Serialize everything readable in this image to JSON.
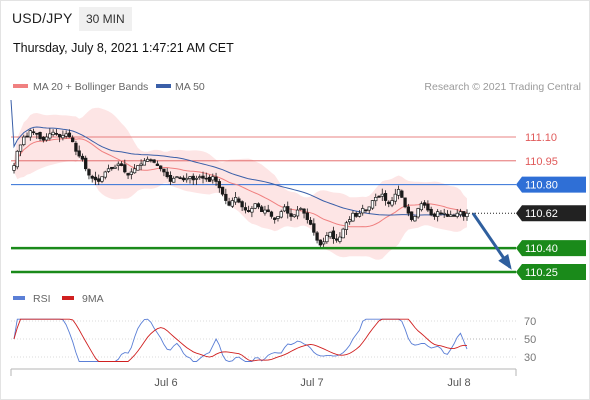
{
  "header": {
    "symbol": "USD/JPY",
    "timeframe": "30 MIN",
    "timestamp": "Thursday, July 8, 2021 1:47:21 AM CET"
  },
  "legend": {
    "ma20": "MA 20 + Bollinger Bands",
    "ma50": "MA 50",
    "copyright": "Research © 2021 Trading Central",
    "rsi": "RSI",
    "ma9": "9MA"
  },
  "colors": {
    "ma20": "#f08080",
    "bollinger_fill": "#fde2e2",
    "ma50": "#3a5fa8",
    "resistance": "#e05a5a",
    "pivot": "#2f6fd6",
    "support": "#1a8a1a",
    "current": "#222222",
    "arrow": "#2f5f9e",
    "rsi": "#5b7fd6",
    "rsi_ma": "#d02020"
  },
  "chart_data": [
    {
      "type": "line",
      "title": "USD/JPY",
      "subtitle": "30 MIN",
      "x_ticks": [
        "Jul 6",
        "Jul 7",
        "Jul 8"
      ],
      "y_range": [
        110.12,
        111.46
      ],
      "levels": [
        {
          "value": 111.1,
          "label": "111.10",
          "role": "resistance"
        },
        {
          "value": 110.95,
          "label": "110.95",
          "role": "resistance"
        },
        {
          "value": 110.8,
          "label": "110.80",
          "role": "pivot"
        },
        {
          "value": 110.62,
          "label": "110.62",
          "role": "current"
        },
        {
          "value": 110.4,
          "label": "110.40",
          "role": "support"
        },
        {
          "value": 110.25,
          "label": "110.25",
          "role": "support"
        }
      ],
      "series": [
        {
          "name": "MA 20 + Bollinger Bands",
          "role": "ma20"
        },
        {
          "name": "MA 50",
          "role": "ma50"
        }
      ],
      "close": [
        110.92,
        111.01,
        111.05,
        111.1,
        111.1,
        111.14,
        111.13,
        111.12,
        111.09,
        111.08,
        111.1,
        111.12,
        111.13,
        111.12,
        111.1,
        111.11,
        111.12,
        111.1,
        111.07,
        111.01,
        110.98,
        110.96,
        110.9,
        110.86,
        110.84,
        110.83,
        110.82,
        110.85,
        110.88,
        110.9,
        110.9,
        110.91,
        110.93,
        110.92,
        110.88,
        110.86,
        110.88,
        110.9,
        110.92,
        110.93,
        110.95,
        110.96,
        110.95,
        110.94,
        110.92,
        110.9,
        110.88,
        110.85,
        110.82,
        110.84,
        110.85,
        110.84,
        110.83,
        110.84,
        110.85,
        110.83,
        110.84,
        110.85,
        110.84,
        110.84,
        110.82,
        110.85,
        110.82,
        110.78,
        110.74,
        110.7,
        110.67,
        110.7,
        110.72,
        110.69,
        110.66,
        110.64,
        110.63,
        110.65,
        110.68,
        110.66,
        110.63,
        110.64,
        110.63,
        110.6,
        110.58,
        110.6,
        110.63,
        110.66,
        110.62,
        110.6,
        110.61,
        110.64,
        110.65,
        110.62,
        110.58,
        110.55,
        110.5,
        110.45,
        110.42,
        110.44,
        110.48,
        110.5,
        110.46,
        110.45,
        110.47,
        110.52,
        110.56,
        110.58,
        110.62,
        110.6,
        110.62,
        110.65,
        110.64,
        110.66,
        110.7,
        110.72,
        110.72,
        110.74,
        110.7,
        110.68,
        110.7,
        110.74,
        110.77,
        110.72,
        110.66,
        110.62,
        110.58,
        110.6,
        110.65,
        110.68,
        110.67,
        110.64,
        110.61,
        110.6,
        110.63,
        110.62,
        110.62,
        110.6,
        110.61,
        110.6,
        110.62,
        110.63,
        110.6,
        110.62
      ],
      "forecast": [
        {
          "from": 110.62,
          "to": 110.28
        }
      ]
    },
    {
      "type": "line",
      "title": "RSI",
      "y_range": [
        20,
        80
      ],
      "y_ticks": [
        70,
        50,
        30
      ],
      "series": [
        {
          "name": "RSI",
          "role": "rsi"
        },
        {
          "name": "9MA",
          "role": "rsi_ma"
        }
      ]
    }
  ]
}
